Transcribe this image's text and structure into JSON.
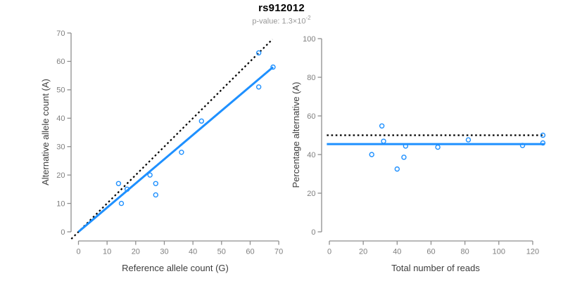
{
  "header": {
    "title": "rs912012",
    "subtitle_prefix": "p-value: 1.3×10",
    "subtitle_exponent": "-2"
  },
  "colors": {
    "point": "#1E90FF",
    "fit_line": "#1E90FF",
    "reference_line": "#000000",
    "axis": "#8f8f8f",
    "tick_label": "#7f7f7f",
    "axis_title": "#3d3d3d",
    "title": "#000000",
    "subtitle": "#979797",
    "background": "#ffffff"
  },
  "chart_data": [
    {
      "type": "scatter",
      "xlabel": "Reference allele count (G)",
      "ylabel": "Alternative allele count (A)",
      "xlim": [
        0,
        70
      ],
      "ylim": [
        0,
        70
      ],
      "xticks": [
        0,
        10,
        20,
        30,
        40,
        50,
        60,
        70
      ],
      "yticks": [
        0,
        10,
        20,
        30,
        40,
        50,
        60,
        70
      ],
      "grid": false,
      "legend": "none",
      "points": [
        [
          14,
          17
        ],
        [
          15,
          10
        ],
        [
          17,
          15
        ],
        [
          25,
          20
        ],
        [
          27,
          13
        ],
        [
          27,
          17
        ],
        [
          36,
          28
        ],
        [
          43,
          39
        ],
        [
          63,
          51
        ],
        [
          63,
          63
        ],
        [
          68,
          58
        ]
      ],
      "lines": [
        {
          "name": "identity-line",
          "style": "dotted",
          "color": "#000000",
          "x1": -2.5,
          "y1": -2.5,
          "x2": 67.8,
          "y2": 67.8
        },
        {
          "name": "fit-line",
          "style": "solid",
          "color": "#1E90FF",
          "x1": 0,
          "y1": 0,
          "x2": 68,
          "y2": 58
        }
      ]
    },
    {
      "type": "scatter",
      "xlabel": "Total number of reads",
      "ylabel": "Percentage alternative (A)",
      "xlim": [
        0,
        120
      ],
      "ylim": [
        0,
        100
      ],
      "xticks": [
        0,
        20,
        40,
        60,
        80,
        100,
        120
      ],
      "yticks": [
        0,
        20,
        40,
        60,
        80,
        100
      ],
      "grid": false,
      "legend": "none",
      "points": [
        [
          25,
          40.0
        ],
        [
          31,
          54.8
        ],
        [
          32,
          46.9
        ],
        [
          40,
          32.5
        ],
        [
          44,
          38.6
        ],
        [
          45,
          44.4
        ],
        [
          64,
          43.8
        ],
        [
          82,
          47.6
        ],
        [
          114,
          44.7
        ],
        [
          126,
          50.0
        ],
        [
          126,
          46.0
        ]
      ],
      "lines": [
        {
          "name": "null-line",
          "style": "dotted",
          "color": "#000000",
          "x1": -1.5,
          "y1": 50,
          "x2": 127,
          "y2": 50
        },
        {
          "name": "mean-line",
          "style": "solid",
          "color": "#1E90FF",
          "x1": -1.5,
          "y1": 45.4,
          "x2": 127,
          "y2": 45.4
        }
      ]
    }
  ]
}
